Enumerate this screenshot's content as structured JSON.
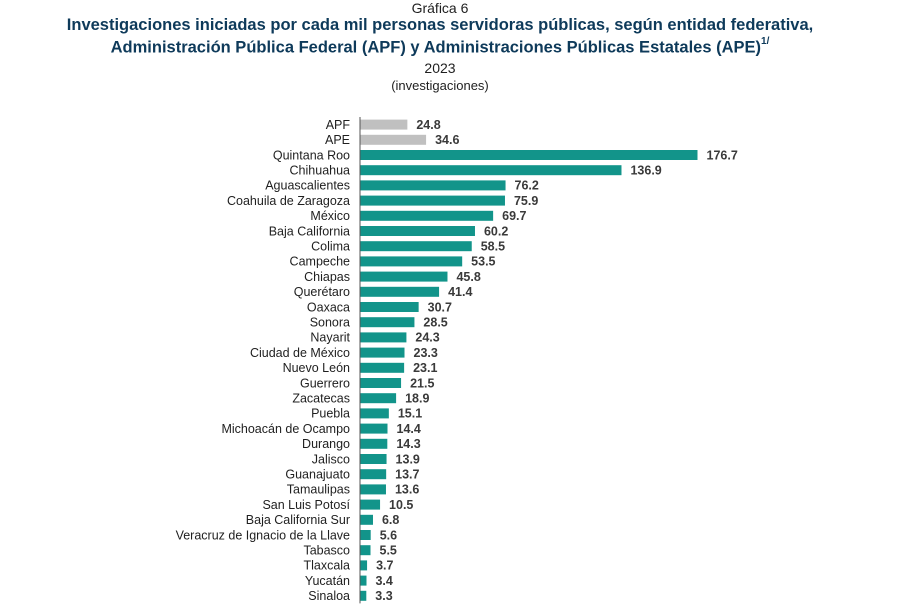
{
  "header": {
    "label": "Gráfica 6",
    "title_line1": "Investigaciones iniciadas por cada mil personas servidoras públicas, según entidad federativa,",
    "title_line2": "Administración Pública Federal (APF) y Administraciones Públicas Estatales (APE)",
    "title_footnote": "1/",
    "year": "2023",
    "unit": "(investigaciones)"
  },
  "colors": {
    "reference": "#c0c0c0",
    "state": "#12948a",
    "axis": "#555555"
  },
  "chart_data": {
    "type": "bar",
    "orientation": "horizontal",
    "title": "Investigaciones iniciadas por cada mil personas servidoras públicas, según entidad federativa, Administración Pública Federal (APF) y Administraciones Públicas Estatales (APE)",
    "categories": [
      "APF",
      "APE",
      "Quintana Roo",
      "Chihuahua",
      "Aguascalientes",
      "Coahuila de Zaragoza",
      "México",
      "Baja California",
      "Colima",
      "Campeche",
      "Chiapas",
      "Querétaro",
      "Oaxaca",
      "Sonora",
      "Nayarit",
      "Ciudad de México",
      "Nuevo León",
      "Guerrero",
      "Zacatecas",
      "Puebla",
      "Michoacán de Ocampo",
      "Durango",
      "Jalisco",
      "Guanajuato",
      "Tamaulipas",
      "San Luis Potosí",
      "Baja California Sur",
      "Veracruz de Ignacio de la Llave",
      "Tabasco",
      "Tlaxcala",
      "Yucatán",
      "Sinaloa"
    ],
    "values": [
      24.8,
      34.6,
      176.7,
      136.9,
      76.2,
      75.9,
      69.7,
      60.2,
      58.5,
      53.5,
      45.8,
      41.4,
      30.7,
      28.5,
      24.3,
      23.3,
      23.1,
      21.5,
      18.9,
      15.1,
      14.4,
      14.3,
      13.9,
      13.7,
      13.6,
      10.5,
      6.8,
      5.6,
      5.5,
      3.7,
      3.4,
      3.3
    ],
    "value_labels": [
      "24.8",
      "34.6",
      "176.7",
      "136.9",
      "76.2",
      "75.9",
      "69.7",
      "60.2",
      "58.5",
      "53.5",
      "45.8",
      "41.4",
      "30.7",
      "28.5",
      "24.3",
      "23.3",
      "23.1",
      "21.5",
      "18.9",
      "15.1",
      "14.4",
      "14.3",
      "13.9",
      "13.7",
      "13.6",
      "10.5",
      "6.8",
      "5.6",
      "5.5",
      "3.7",
      "3.4",
      "3.3"
    ],
    "highlight_categories": [
      "APF",
      "APE"
    ],
    "xlim": [
      0,
      176.7
    ],
    "xlabel": "",
    "ylabel": "",
    "grid": false,
    "legend": "none"
  }
}
